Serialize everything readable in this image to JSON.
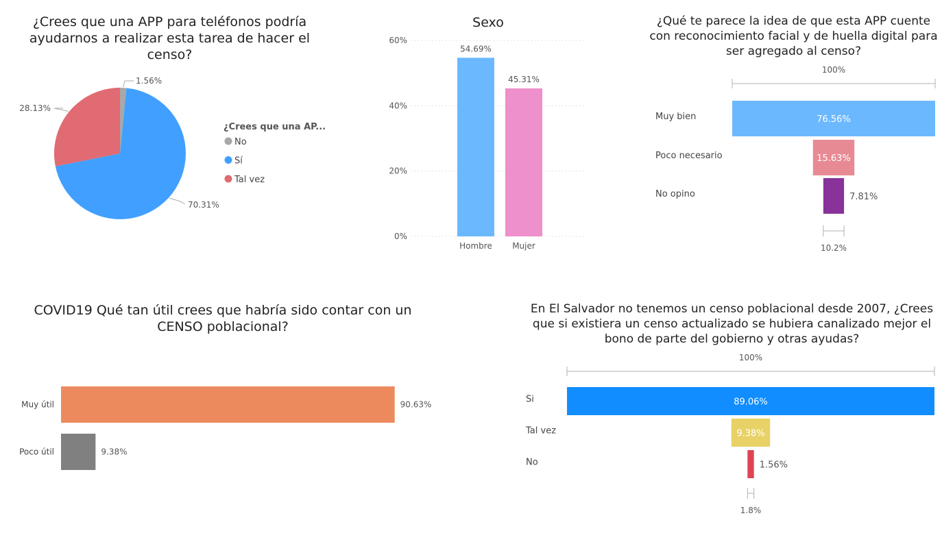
{
  "chart_data": [
    {
      "type": "pie",
      "title": "¿Crees que una APP para teléfonos podría ayudarnos a realizar esta tarea de hacer el censo?",
      "legend_title": "¿Crees que una AP...",
      "legend_position": "right",
      "categories": [
        "No",
        "Sí",
        "Tal vez"
      ],
      "values": [
        1.56,
        70.31,
        28.13
      ],
      "labels": [
        "1.56%",
        "70.31%",
        "28.13%"
      ],
      "colors": [
        "#a8a8a8",
        "#41a0ff",
        "#e06b72"
      ]
    },
    {
      "type": "bar",
      "title": "Sexo",
      "categories": [
        "Hombre",
        "Mujer"
      ],
      "values": [
        54.69,
        45.31
      ],
      "labels": [
        "54.69%",
        "45.31%"
      ],
      "colors": [
        "#6cb8ff",
        "#ee90cb"
      ],
      "ylim": [
        0,
        60
      ],
      "yticks": [
        "0%",
        "20%",
        "40%",
        "60%"
      ],
      "grid": true
    },
    {
      "type": "bar",
      "orientation": "funnel",
      "title": "¿Qué te parece la idea de que esta APP cuente con reconocimiento facial y de huella digital para ser agregado al censo?",
      "top_label": "100%",
      "bottom_label": "10.2%",
      "categories": [
        "Muy bien",
        "Poco necesario",
        "No opino"
      ],
      "values": [
        76.56,
        15.63,
        7.81
      ],
      "labels": [
        "76.56%",
        "15.63%",
        "7.81%"
      ],
      "colors": [
        "#6cb8ff",
        "#e88a94",
        "#88329a"
      ]
    },
    {
      "type": "bar",
      "orientation": "horizontal",
      "title": "COVID19 Qué tan útil crees que habría sido contar con un CENSO poblacional?",
      "categories": [
        "Muy útil",
        "Poco útil"
      ],
      "values": [
        90.63,
        9.38
      ],
      "labels": [
        "90.63%",
        "9.38%"
      ],
      "colors": [
        "#ec8a5e",
        "#808080"
      ]
    },
    {
      "type": "bar",
      "orientation": "funnel",
      "title": "En El Salvador no tenemos un censo poblacional desde 2007, ¿Crees que si existiera un censo actualizado se hubiera canalizado mejor el bono de parte del gobierno y otras ayudas?",
      "top_label": "100%",
      "bottom_label": "1.8%",
      "categories": [
        "Si",
        "Tal vez",
        "No"
      ],
      "values": [
        89.06,
        9.38,
        1.56
      ],
      "labels": [
        "89.06%",
        "9.38%",
        "1.56%"
      ],
      "colors": [
        "#118dff",
        "#e8d166",
        "#dd4553"
      ]
    }
  ]
}
